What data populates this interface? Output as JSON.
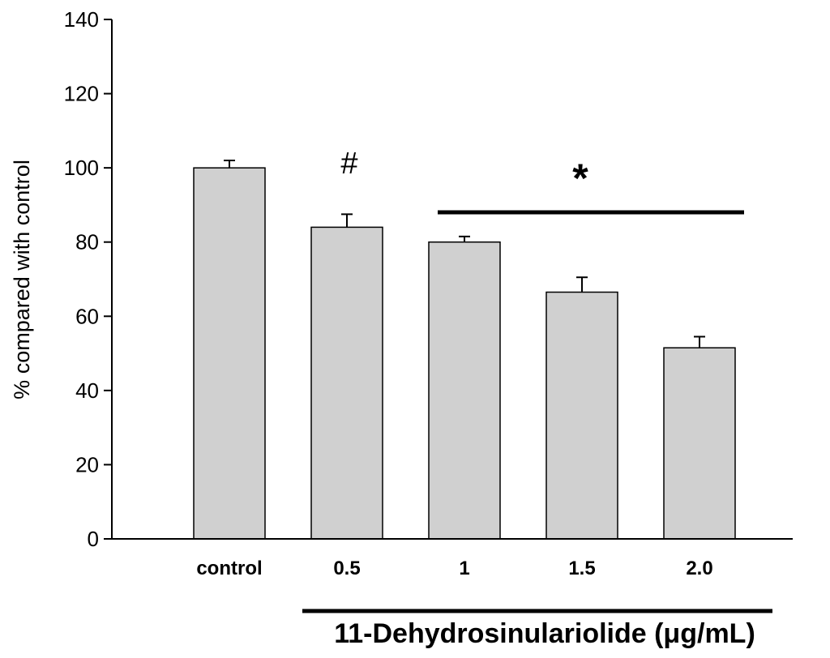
{
  "chart_data": {
    "type": "bar",
    "categories": [
      "control",
      "0.5",
      "1",
      "1.5",
      "2.0"
    ],
    "values": [
      100,
      84,
      80,
      66.5,
      51.5
    ],
    "errors": [
      2,
      3.5,
      1.5,
      4,
      3
    ],
    "xlabel": "11-Dehydrosinulariolide (μg/mL)",
    "ylabel": "% compared with control",
    "ylim": [
      0,
      140
    ],
    "yticks": [
      0,
      20,
      40,
      60,
      80,
      100,
      120,
      140
    ],
    "bar_color": "#d0d0d0",
    "grid": false,
    "annotations": {
      "hash": "#",
      "star": "*"
    }
  }
}
